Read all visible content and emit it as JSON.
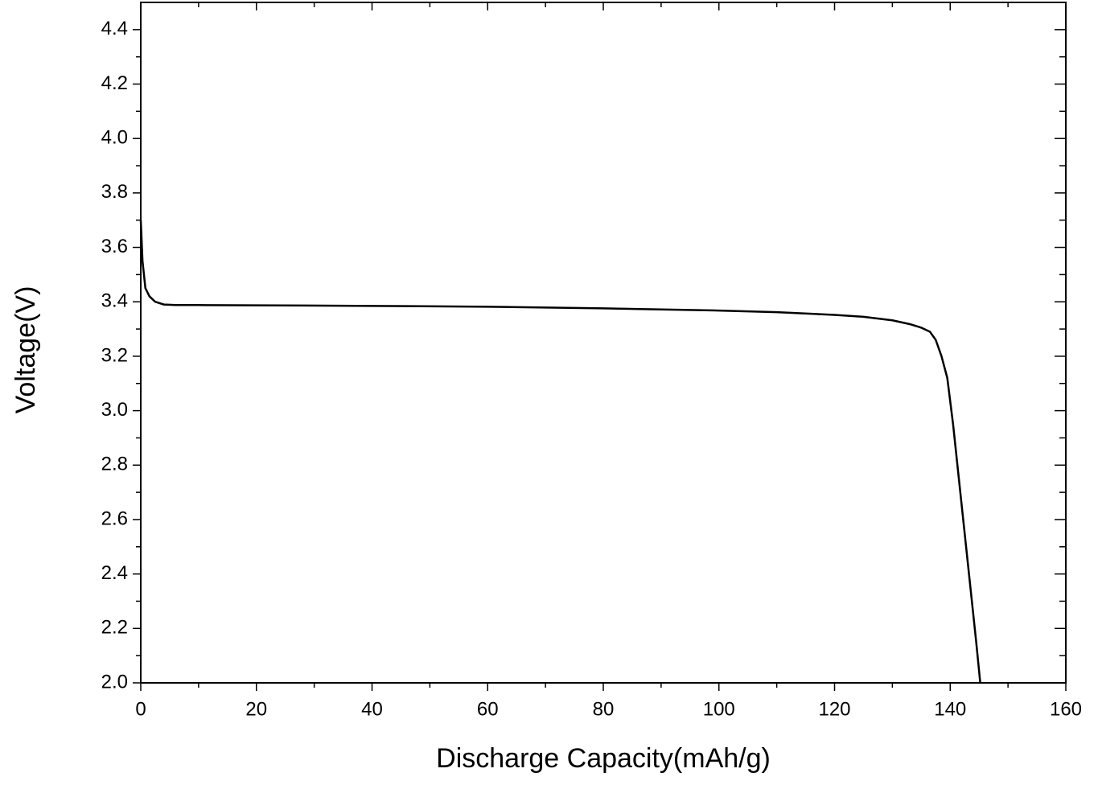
{
  "chart_data": {
    "type": "line",
    "x_label": "Discharge Capacity(mAh/g)",
    "y_label": "Voltage(V)",
    "x": [
      0,
      0.3,
      0.8,
      1.5,
      2.5,
      4,
      6,
      10,
      20,
      40,
      60,
      80,
      100,
      110,
      120,
      125,
      130,
      133,
      135,
      136.5,
      137.5,
      138.5,
      139.5,
      140.5,
      141.5,
      142.5,
      143.5,
      144.5,
      145.2
    ],
    "series": [
      {
        "color": "#000000",
        "values": [
          3.7,
          3.55,
          3.45,
          3.42,
          3.4,
          3.39,
          3.388,
          3.388,
          3.387,
          3.385,
          3.382,
          3.376,
          3.368,
          3.362,
          3.352,
          3.345,
          3.332,
          3.318,
          3.305,
          3.29,
          3.26,
          3.2,
          3.12,
          2.95,
          2.75,
          2.55,
          2.35,
          2.15,
          2.0
        ]
      }
    ],
    "xlim": [
      0,
      160
    ],
    "xticks": [
      0,
      20,
      40,
      60,
      80,
      100,
      120,
      140,
      160
    ],
    "ylim": [
      2.0,
      4.5
    ],
    "yticks": [
      {
        "value": 2.0,
        "label": "2.0"
      },
      2.2,
      2.4,
      2.6,
      2.8,
      {
        "value": 3.0,
        "label": "3.0"
      },
      3.2,
      3.4,
      3.6,
      3.8,
      {
        "value": 4.0,
        "label": "4.0"
      },
      4.2,
      4.4
    ]
  }
}
